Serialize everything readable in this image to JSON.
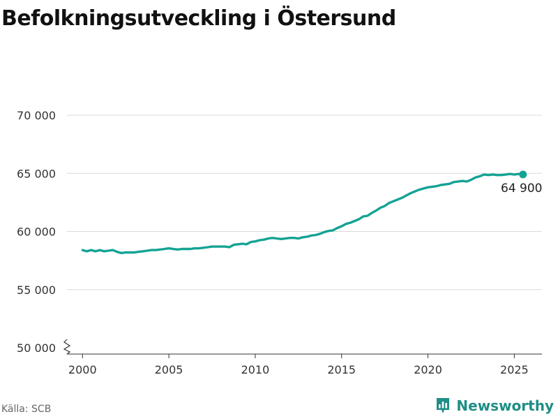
{
  "title": "Befolkningsutveckling i Östersund",
  "source": "Källa: SCB",
  "brand": {
    "name": "Newsworthy",
    "icon": "newsworthy-logo-icon",
    "color": "#1f8e86"
  },
  "colors": {
    "line": "#14a394",
    "grid": "#d9d9d9",
    "axis": "#333333"
  },
  "chart_data": {
    "type": "line",
    "title": "Befolkningsutveckling i Östersund",
    "xlabel": "",
    "ylabel": "",
    "xlim": [
      1999.1,
      2026.6
    ],
    "ylim": [
      50000,
      70000
    ],
    "y_axis_break": true,
    "y_ticks": [
      50000,
      55000,
      60000,
      65000,
      70000
    ],
    "y_tick_labels": [
      "50 000",
      "55 000",
      "60 000",
      "65 000",
      "70 000"
    ],
    "x_ticks": [
      2000,
      2005,
      2010,
      2015,
      2020,
      2025
    ],
    "x_tick_labels": [
      "2000",
      "2005",
      "2010",
      "2015",
      "2020",
      "2025"
    ],
    "grid": true,
    "end_label": "64 900",
    "series": [
      {
        "name": "",
        "points": [
          [
            2000.0,
            58400
          ],
          [
            2000.25,
            58300
          ],
          [
            2000.5,
            58400
          ],
          [
            2000.75,
            58300
          ],
          [
            2001.0,
            58400
          ],
          [
            2001.25,
            58300
          ],
          [
            2001.5,
            58350
          ],
          [
            2001.75,
            58400
          ],
          [
            2002.0,
            58250
          ],
          [
            2002.25,
            58150
          ],
          [
            2002.5,
            58200
          ],
          [
            2002.75,
            58200
          ],
          [
            2003.0,
            58200
          ],
          [
            2003.25,
            58250
          ],
          [
            2003.5,
            58300
          ],
          [
            2003.75,
            58350
          ],
          [
            2004.0,
            58400
          ],
          [
            2004.25,
            58400
          ],
          [
            2004.5,
            58450
          ],
          [
            2004.75,
            58500
          ],
          [
            2005.0,
            58550
          ],
          [
            2005.25,
            58500
          ],
          [
            2005.5,
            58450
          ],
          [
            2005.75,
            58500
          ],
          [
            2006.0,
            58500
          ],
          [
            2006.25,
            58500
          ],
          [
            2006.5,
            58550
          ],
          [
            2006.75,
            58550
          ],
          [
            2007.0,
            58600
          ],
          [
            2007.25,
            58650
          ],
          [
            2007.5,
            58700
          ],
          [
            2007.75,
            58700
          ],
          [
            2008.0,
            58700
          ],
          [
            2008.25,
            58700
          ],
          [
            2008.5,
            58650
          ],
          [
            2008.75,
            58850
          ],
          [
            2009.0,
            58900
          ],
          [
            2009.25,
            58950
          ],
          [
            2009.5,
            58900
          ],
          [
            2009.75,
            59100
          ],
          [
            2010.0,
            59150
          ],
          [
            2010.25,
            59250
          ],
          [
            2010.5,
            59300
          ],
          [
            2010.75,
            59400
          ],
          [
            2011.0,
            59450
          ],
          [
            2011.25,
            59400
          ],
          [
            2011.5,
            59350
          ],
          [
            2011.75,
            59400
          ],
          [
            2012.0,
            59450
          ],
          [
            2012.25,
            59450
          ],
          [
            2012.5,
            59400
          ],
          [
            2012.75,
            59500
          ],
          [
            2013.0,
            59550
          ],
          [
            2013.25,
            59650
          ],
          [
            2013.5,
            59700
          ],
          [
            2013.75,
            59800
          ],
          [
            2014.0,
            59950
          ],
          [
            2014.25,
            60050
          ],
          [
            2014.5,
            60100
          ],
          [
            2014.75,
            60300
          ],
          [
            2015.0,
            60450
          ],
          [
            2015.25,
            60650
          ],
          [
            2015.5,
            60750
          ],
          [
            2015.75,
            60900
          ],
          [
            2016.0,
            61050
          ],
          [
            2016.25,
            61300
          ],
          [
            2016.5,
            61350
          ],
          [
            2016.75,
            61600
          ],
          [
            2017.0,
            61800
          ],
          [
            2017.25,
            62050
          ],
          [
            2017.5,
            62200
          ],
          [
            2017.75,
            62450
          ],
          [
            2018.0,
            62600
          ],
          [
            2018.25,
            62750
          ],
          [
            2018.5,
            62900
          ],
          [
            2018.75,
            63100
          ],
          [
            2019.0,
            63300
          ],
          [
            2019.25,
            63450
          ],
          [
            2019.5,
            63600
          ],
          [
            2019.75,
            63700
          ],
          [
            2020.0,
            63800
          ],
          [
            2020.25,
            63850
          ],
          [
            2020.5,
            63900
          ],
          [
            2020.75,
            64000
          ],
          [
            2021.0,
            64050
          ],
          [
            2021.25,
            64100
          ],
          [
            2021.5,
            64250
          ],
          [
            2021.75,
            64300
          ],
          [
            2022.0,
            64350
          ],
          [
            2022.25,
            64300
          ],
          [
            2022.5,
            64450
          ],
          [
            2022.75,
            64650
          ],
          [
            2023.0,
            64750
          ],
          [
            2023.25,
            64900
          ],
          [
            2023.5,
            64850
          ],
          [
            2023.75,
            64900
          ],
          [
            2024.0,
            64850
          ],
          [
            2024.25,
            64850
          ],
          [
            2024.5,
            64900
          ],
          [
            2024.75,
            64950
          ],
          [
            2025.0,
            64900
          ],
          [
            2025.25,
            64950
          ],
          [
            2025.5,
            64900
          ]
        ]
      }
    ]
  }
}
